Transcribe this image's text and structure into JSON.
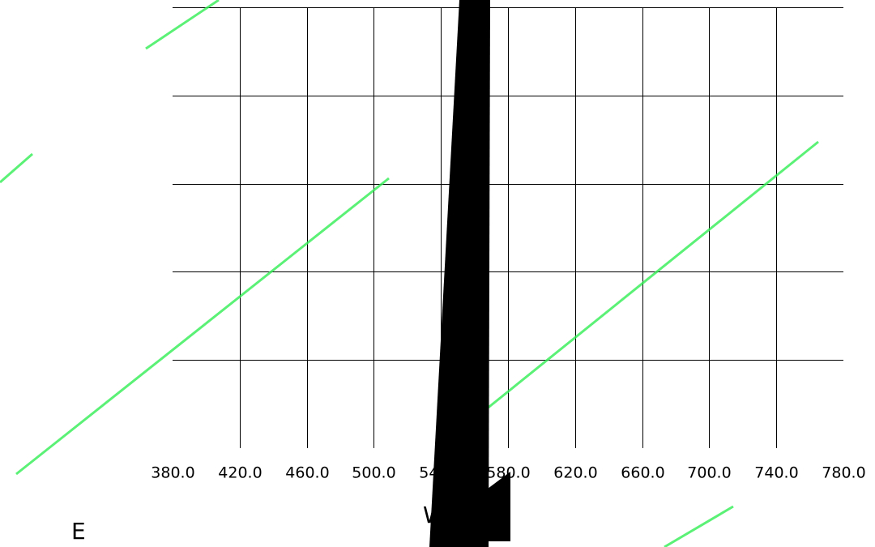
{
  "chart_data": {
    "type": "line",
    "xlabel": "W",
    "corner_label": "E",
    "xlim": [
      380,
      780
    ],
    "xticks": [
      {
        "value": 380,
        "label": "380.0"
      },
      {
        "value": 420,
        "label": "420.0"
      },
      {
        "value": 460,
        "label": "460.0"
      },
      {
        "value": 500,
        "label": "500.0"
      },
      {
        "value": 540,
        "label": "540.0"
      },
      {
        "value": 580,
        "label": "580.0"
      },
      {
        "value": 620,
        "label": "620.0"
      },
      {
        "value": 660,
        "label": "660.0"
      },
      {
        "value": 700,
        "label": "700.0"
      },
      {
        "value": 740,
        "label": "740.0"
      },
      {
        "value": 780,
        "label": "780.0"
      }
    ],
    "grid": true
  }
}
